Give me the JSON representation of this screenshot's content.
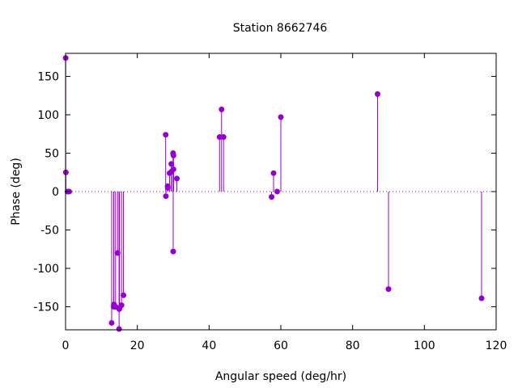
{
  "chart_data": {
    "type": "scatter",
    "title": "Station 8662746",
    "xlabel": "Angular speed (deg/hr)",
    "ylabel": "Phase (deg)",
    "xlim": [
      0,
      120
    ],
    "ylim": [
      -180,
      180
    ],
    "xticks": [
      0,
      20,
      40,
      60,
      80,
      100,
      120
    ],
    "yticks": [
      -150,
      -100,
      -50,
      0,
      50,
      100,
      150
    ],
    "grid": false,
    "legend": "none",
    "series_color": "#9400d3",
    "baseline": 0,
    "points": [
      {
        "x": 0.04,
        "y": 174
      },
      {
        "x": 0.08,
        "y": 25
      },
      {
        "x": 0.54,
        "y": 0
      },
      {
        "x": 1.02,
        "y": 0
      },
      {
        "x": 12.85,
        "y": -171
      },
      {
        "x": 13.4,
        "y": -150
      },
      {
        "x": 13.47,
        "y": -147
      },
      {
        "x": 13.94,
        "y": -150
      },
      {
        "x": 14.5,
        "y": -80
      },
      {
        "x": 14.92,
        "y": -179
      },
      {
        "x": 14.96,
        "y": -153
      },
      {
        "x": 15.04,
        "y": -152
      },
      {
        "x": 15.59,
        "y": -148
      },
      {
        "x": 16.14,
        "y": -135
      },
      {
        "x": 27.9,
        "y": 74
      },
      {
        "x": 27.97,
        "y": -6
      },
      {
        "x": 28.44,
        "y": 7
      },
      {
        "x": 28.51,
        "y": 5
      },
      {
        "x": 28.99,
        "y": 24
      },
      {
        "x": 29.46,
        "y": 36
      },
      {
        "x": 29.53,
        "y": 26
      },
      {
        "x": 29.96,
        "y": 50
      },
      {
        "x": 30.0,
        "y": -78
      },
      {
        "x": 30.08,
        "y": 29
      },
      {
        "x": 30.08,
        "y": 47
      },
      {
        "x": 31.02,
        "y": 17
      },
      {
        "x": 42.93,
        "y": 71
      },
      {
        "x": 43.48,
        "y": 107
      },
      {
        "x": 44.03,
        "y": 71
      },
      {
        "x": 57.42,
        "y": -7
      },
      {
        "x": 57.97,
        "y": 24
      },
      {
        "x": 58.98,
        "y": 0
      },
      {
        "x": 60.0,
        "y": 97
      },
      {
        "x": 86.95,
        "y": 127
      },
      {
        "x": 90.0,
        "y": -127
      },
      {
        "x": 115.94,
        "y": -139
      }
    ]
  }
}
